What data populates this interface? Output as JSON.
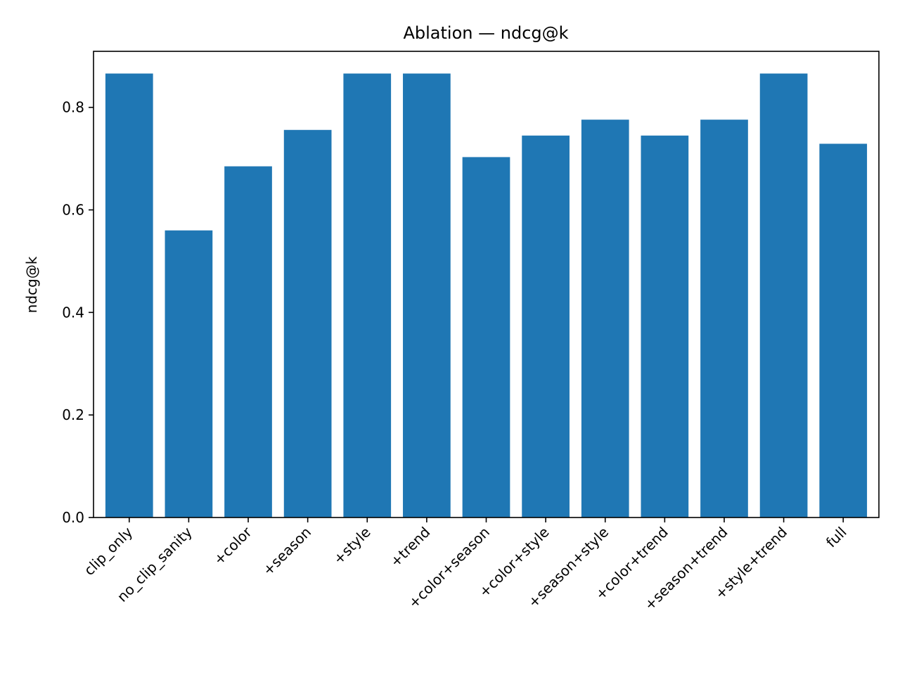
{
  "chart_data": {
    "type": "bar",
    "title": "Ablation — ndcg@k",
    "xlabel": "",
    "ylabel": "ndcg@k",
    "categories": [
      "clip_only",
      "no_clip_sanity",
      "+color",
      "+season",
      "+style",
      "+trend",
      "+color+season",
      "+color+style",
      "+season+style",
      "+color+trend",
      "+season+trend",
      "+style+trend",
      "full"
    ],
    "values": [
      0.866,
      0.56,
      0.685,
      0.756,
      0.866,
      0.866,
      0.703,
      0.745,
      0.776,
      0.745,
      0.776,
      0.866,
      0.729
    ],
    "ylim": [
      0,
      0.9093
    ],
    "yticks": [
      {
        "value": 0.0,
        "label": "0.0"
      },
      {
        "value": 0.2,
        "label": "0.2"
      },
      {
        "value": 0.4,
        "label": "0.4"
      },
      {
        "value": 0.6,
        "label": "0.6"
      },
      {
        "value": 0.8,
        "label": "0.8"
      }
    ],
    "bar_color": "#1f77b4",
    "grid": false,
    "legend": "none"
  }
}
